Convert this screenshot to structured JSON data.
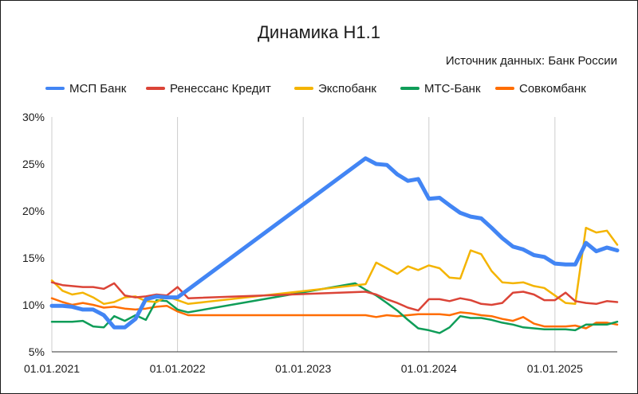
{
  "chart_data": {
    "type": "line",
    "title": "Динамика Н1.1",
    "subtitle": "Источник данных: Банк России",
    "x_ticks": [
      "01.01.2021",
      "01.01.2022",
      "01.01.2023",
      "01.01.2024",
      "01.01.2025"
    ],
    "y_ticks": [
      "5%",
      "10%",
      "15%",
      "20%",
      "25%",
      "30%"
    ],
    "ylim": [
      5,
      30
    ],
    "xlim": [
      "2021-01-01",
      "2025-07-01"
    ],
    "grid": "vertical-at-year-ticks",
    "legend_position": "top",
    "series": [
      {
        "name": "МСП Банк",
        "color": "#4285f4",
        "x": [
          "2021-01-01",
          "2021-02-01",
          "2021-03-01",
          "2021-04-01",
          "2021-05-01",
          "2021-06-01",
          "2021-07-01",
          "2021-08-01",
          "2021-09-01",
          "2021-10-01",
          "2021-11-01",
          "2021-12-01",
          "2022-01-01",
          "2023-07-01",
          "2023-08-01",
          "2023-09-01",
          "2023-10-01",
          "2023-11-01",
          "2023-12-01",
          "2024-01-01",
          "2024-02-01",
          "2024-03-01",
          "2024-04-01",
          "2024-05-01",
          "2024-06-01",
          "2024-07-01",
          "2024-08-01",
          "2024-09-01",
          "2024-10-01",
          "2024-11-01",
          "2024-12-01",
          "2025-01-01",
          "2025-02-01",
          "2025-03-01",
          "2025-04-01",
          "2025-05-01",
          "2025-06-01",
          "2025-07-01"
        ],
        "y": [
          9.9,
          9.9,
          9.8,
          9.5,
          9.5,
          8.9,
          7.6,
          7.6,
          8.5,
          10.6,
          10.9,
          10.8,
          10.8,
          25.6,
          25.0,
          24.9,
          23.9,
          23.2,
          23.4,
          21.3,
          21.4,
          20.6,
          19.8,
          19.4,
          19.2,
          18.2,
          17.1,
          16.2,
          15.9,
          15.3,
          15.1,
          14.4,
          14.3,
          14.3,
          16.6,
          15.7,
          16.1,
          15.8
        ]
      },
      {
        "name": "Ренессанс Кредит",
        "color": "#db4437",
        "x": [
          "2021-01-01",
          "2021-02-01",
          "2021-03-01",
          "2021-04-01",
          "2021-05-01",
          "2021-06-01",
          "2021-07-01",
          "2021-08-01",
          "2021-09-01",
          "2021-10-01",
          "2021-11-01",
          "2021-12-01",
          "2022-01-01",
          "2022-02-01",
          "2023-07-01",
          "2023-08-01",
          "2023-09-01",
          "2023-10-01",
          "2023-11-01",
          "2023-12-01",
          "2024-01-01",
          "2024-02-01",
          "2024-03-01",
          "2024-04-01",
          "2024-05-01",
          "2024-06-01",
          "2024-07-01",
          "2024-08-01",
          "2024-09-01",
          "2024-10-01",
          "2024-11-01",
          "2024-12-01",
          "2025-01-01",
          "2025-02-01",
          "2025-03-01",
          "2025-04-01",
          "2025-05-01",
          "2025-06-01",
          "2025-07-01"
        ],
        "y": [
          12.4,
          12.1,
          12.0,
          11.9,
          11.9,
          11.7,
          12.3,
          11.0,
          10.8,
          10.9,
          11.1,
          11.0,
          11.9,
          10.7,
          11.4,
          11.1,
          10.6,
          10.2,
          9.7,
          9.4,
          10.6,
          10.6,
          10.4,
          10.7,
          10.5,
          10.1,
          10.0,
          10.2,
          11.3,
          11.4,
          11.1,
          10.5,
          10.5,
          11.3,
          10.4,
          10.2,
          10.1,
          10.4,
          10.3
        ]
      },
      {
        "name": "Экспобанк",
        "color": "#f4b400",
        "x": [
          "2021-01-01",
          "2021-02-01",
          "2021-03-01",
          "2021-04-01",
          "2021-05-01",
          "2021-06-01",
          "2021-07-01",
          "2021-08-01",
          "2021-09-01",
          "2021-10-01",
          "2021-11-01",
          "2021-12-01",
          "2022-01-01",
          "2022-02-01",
          "2023-07-01",
          "2023-08-01",
          "2023-09-01",
          "2023-10-01",
          "2023-11-01",
          "2023-12-01",
          "2024-01-01",
          "2024-02-01",
          "2024-03-01",
          "2024-04-01",
          "2024-05-01",
          "2024-06-01",
          "2024-07-01",
          "2024-08-01",
          "2024-09-01",
          "2024-10-01",
          "2024-11-01",
          "2024-12-01",
          "2025-01-01",
          "2025-02-01",
          "2025-03-01",
          "2025-04-01",
          "2025-05-01",
          "2025-06-01",
          "2025-07-01"
        ],
        "y": [
          12.6,
          11.5,
          11.1,
          11.3,
          10.8,
          10.1,
          10.3,
          10.8,
          10.9,
          10.4,
          10.3,
          10.9,
          10.5,
          10.1,
          12.2,
          14.5,
          13.9,
          13.3,
          14.1,
          13.7,
          14.2,
          13.9,
          12.9,
          12.8,
          15.8,
          15.4,
          13.6,
          12.4,
          12.3,
          12.4,
          12.0,
          11.8,
          11.0,
          10.2,
          10.1,
          18.2,
          17.7,
          17.9,
          16.4
        ]
      },
      {
        "name": "МТС-Банк",
        "color": "#0f9d58",
        "x": [
          "2021-01-01",
          "2021-02-01",
          "2021-03-01",
          "2021-04-01",
          "2021-05-01",
          "2021-06-01",
          "2021-07-01",
          "2021-08-01",
          "2021-09-01",
          "2021-10-01",
          "2021-11-01",
          "2021-12-01",
          "2022-01-01",
          "2022-02-01",
          "2023-06-01",
          "2023-07-01",
          "2023-08-01",
          "2023-09-01",
          "2023-10-01",
          "2023-11-01",
          "2023-12-01",
          "2024-01-01",
          "2024-02-01",
          "2024-03-01",
          "2024-04-01",
          "2024-05-01",
          "2024-06-01",
          "2024-07-01",
          "2024-08-01",
          "2024-09-01",
          "2024-10-01",
          "2024-11-01",
          "2024-12-01",
          "2025-01-01",
          "2025-02-01",
          "2025-03-01",
          "2025-04-01",
          "2025-05-01",
          "2025-06-01",
          "2025-07-01"
        ],
        "y": [
          8.2,
          8.2,
          8.2,
          8.3,
          7.7,
          7.6,
          8.8,
          8.3,
          8.9,
          8.4,
          10.5,
          10.4,
          9.5,
          9.2,
          12.3,
          11.6,
          11.0,
          10.2,
          9.4,
          8.4,
          7.5,
          7.3,
          7.0,
          7.6,
          8.8,
          8.6,
          8.6,
          8.4,
          8.1,
          7.9,
          7.6,
          7.5,
          7.4,
          7.4,
          7.4,
          7.3,
          7.9,
          7.9,
          7.9,
          8.2
        ]
      },
      {
        "name": "Совкомбанк",
        "color": "#ff6d01",
        "x": [
          "2021-01-01",
          "2021-02-01",
          "2021-03-01",
          "2021-04-01",
          "2021-05-01",
          "2021-06-01",
          "2021-07-01",
          "2021-08-01",
          "2021-09-01",
          "2021-10-01",
          "2021-11-01",
          "2021-12-01",
          "2022-01-01",
          "2022-02-01",
          "2023-07-01",
          "2023-08-01",
          "2023-09-01",
          "2023-10-01",
          "2023-11-01",
          "2023-12-01",
          "2024-01-01",
          "2024-02-01",
          "2024-03-01",
          "2024-04-01",
          "2024-05-01",
          "2024-06-01",
          "2024-07-01",
          "2024-08-01",
          "2024-09-01",
          "2024-10-01",
          "2024-11-01",
          "2024-12-01",
          "2025-01-01",
          "2025-02-01",
          "2025-03-01",
          "2025-04-01",
          "2025-05-01",
          "2025-06-01",
          "2025-07-01"
        ],
        "y": [
          10.7,
          10.3,
          10.0,
          10.2,
          10.0,
          9.7,
          9.8,
          9.6,
          9.5,
          9.6,
          9.8,
          9.9,
          9.3,
          8.9,
          8.9,
          8.7,
          8.9,
          8.8,
          8.9,
          9.0,
          9.0,
          9.0,
          8.9,
          9.2,
          9.1,
          8.9,
          8.8,
          8.5,
          8.3,
          8.7,
          8.0,
          7.7,
          7.7,
          7.7,
          7.8,
          7.5,
          8.1,
          8.1,
          7.9
        ]
      }
    ]
  }
}
